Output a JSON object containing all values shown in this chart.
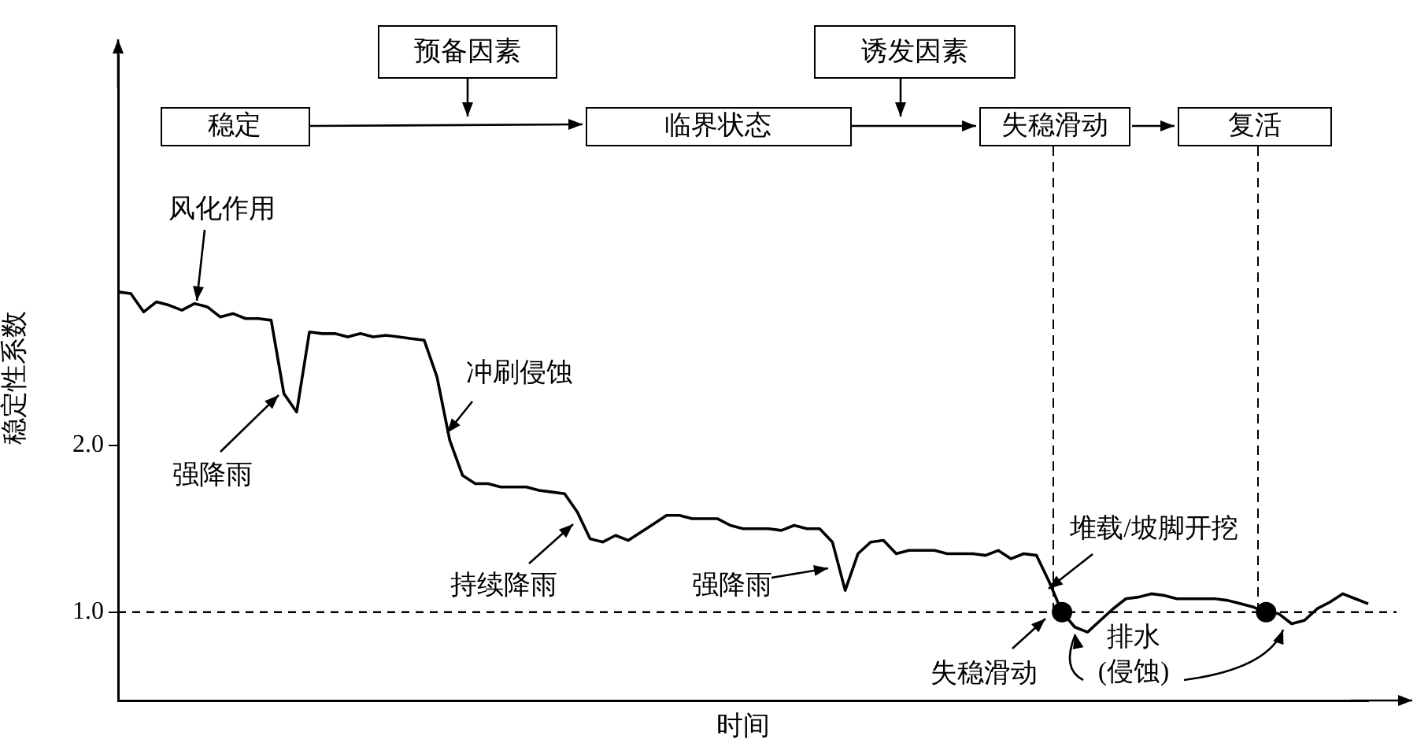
{
  "chart_data": {
    "type": "line",
    "xlabel": "时间",
    "ylabel": "稳定性系数",
    "categories": [
      null,
      null,
      null,
      null,
      null,
      null,
      null,
      null,
      null,
      null,
      null,
      null,
      null,
      null,
      null,
      null,
      null,
      null,
      null,
      null,
      null,
      null,
      null,
      null,
      null,
      null,
      null,
      null,
      null,
      null,
      null,
      null,
      null,
      null,
      null,
      null,
      null,
      null,
      null,
      null,
      null,
      null,
      null,
      null,
      null,
      null,
      null,
      null,
      null,
      null,
      null,
      null,
      null,
      null,
      null,
      null,
      null,
      null,
      null,
      null,
      null,
      null,
      null,
      null,
      null,
      null,
      null,
      null,
      null,
      null,
      null,
      null,
      null,
      null,
      null,
      null,
      null,
      null,
      null,
      null,
      null,
      null,
      null,
      null,
      null,
      null,
      null,
      null,
      null,
      null,
      null,
      null,
      null,
      null,
      null,
      null,
      null,
      null,
      null
    ],
    "series": [
      {
        "color": "#000000",
        "marker": "none",
        "values": [
          2.92,
          2.91,
          2.8,
          2.86,
          2.84,
          2.81,
          2.85,
          2.83,
          2.77,
          2.79,
          2.76,
          2.76,
          2.75,
          2.31,
          2.2,
          2.68,
          2.67,
          2.67,
          2.65,
          2.67,
          2.65,
          2.66,
          2.65,
          2.64,
          2.63,
          2.41,
          2.03,
          1.82,
          1.77,
          1.77,
          1.75,
          1.75,
          1.75,
          1.73,
          1.72,
          1.71,
          1.6,
          1.44,
          1.42,
          1.46,
          1.43,
          1.48,
          1.53,
          1.58,
          1.58,
          1.56,
          1.56,
          1.56,
          1.52,
          1.5,
          1.5,
          1.5,
          1.49,
          1.52,
          1.5,
          1.5,
          1.42,
          1.13,
          1.35,
          1.42,
          1.43,
          1.35,
          1.37,
          1.37,
          1.37,
          1.35,
          1.35,
          1.35,
          1.34,
          1.37,
          1.32,
          1.35,
          1.34,
          1.18,
          1.0,
          0.91,
          0.88,
          0.95,
          1.02,
          1.08,
          1.09,
          1.11,
          1.1,
          1.08,
          1.08,
          1.08,
          1.08,
          1.07,
          1.05,
          1.03,
          1.0,
          0.99,
          0.93,
          0.95,
          1.02,
          1.06,
          1.11,
          1.08,
          1.05
        ]
      },
      {
        "type": "scatter",
        "color": "#000000",
        "marker": "circle",
        "values": [
          null,
          null,
          null,
          null,
          null,
          null,
          null,
          null,
          null,
          null,
          null,
          null,
          null,
          null,
          null,
          null,
          null,
          null,
          null,
          null,
          null,
          null,
          null,
          null,
          null,
          null,
          null,
          null,
          null,
          null,
          null,
          null,
          null,
          null,
          null,
          null,
          null,
          null,
          null,
          null,
          null,
          null,
          null,
          null,
          null,
          null,
          null,
          null,
          null,
          null,
          null,
          null,
          null,
          null,
          null,
          null,
          null,
          null,
          null,
          null,
          null,
          null,
          null,
          null,
          null,
          null,
          null,
          null,
          null,
          null,
          null,
          null,
          null,
          null,
          1.0,
          null,
          null,
          null,
          null,
          null,
          null,
          null,
          null,
          null,
          null,
          null,
          null,
          null,
          null,
          null,
          1.0,
          null,
          null,
          null,
          null,
          null,
          null,
          null,
          null
        ]
      }
    ],
    "ylim": [
      0.47,
      4.34
    ],
    "yticks": [
      {
        "value": 1,
        "label": "1.0"
      },
      {
        "value": 2,
        "label": "2.0"
      }
    ],
    "tick_labels": "y",
    "grid": false,
    "legend": false,
    "ref_lines": [
      {
        "axis": "y",
        "value": 1,
        "label": null,
        "line_style": "dashed",
        "color": "#000000"
      }
    ],
    "annotations": [
      "风化作用",
      "强降雨",
      "冲刷侵蚀",
      "持续降雨",
      "强降雨",
      "堆载/坡脚开挖",
      "失稳滑动",
      "排水\n(侵蚀)",
      "稳定",
      "预备因素",
      "临界状态",
      "诱发因素",
      "失稳滑动",
      "复活"
    ]
  }
}
